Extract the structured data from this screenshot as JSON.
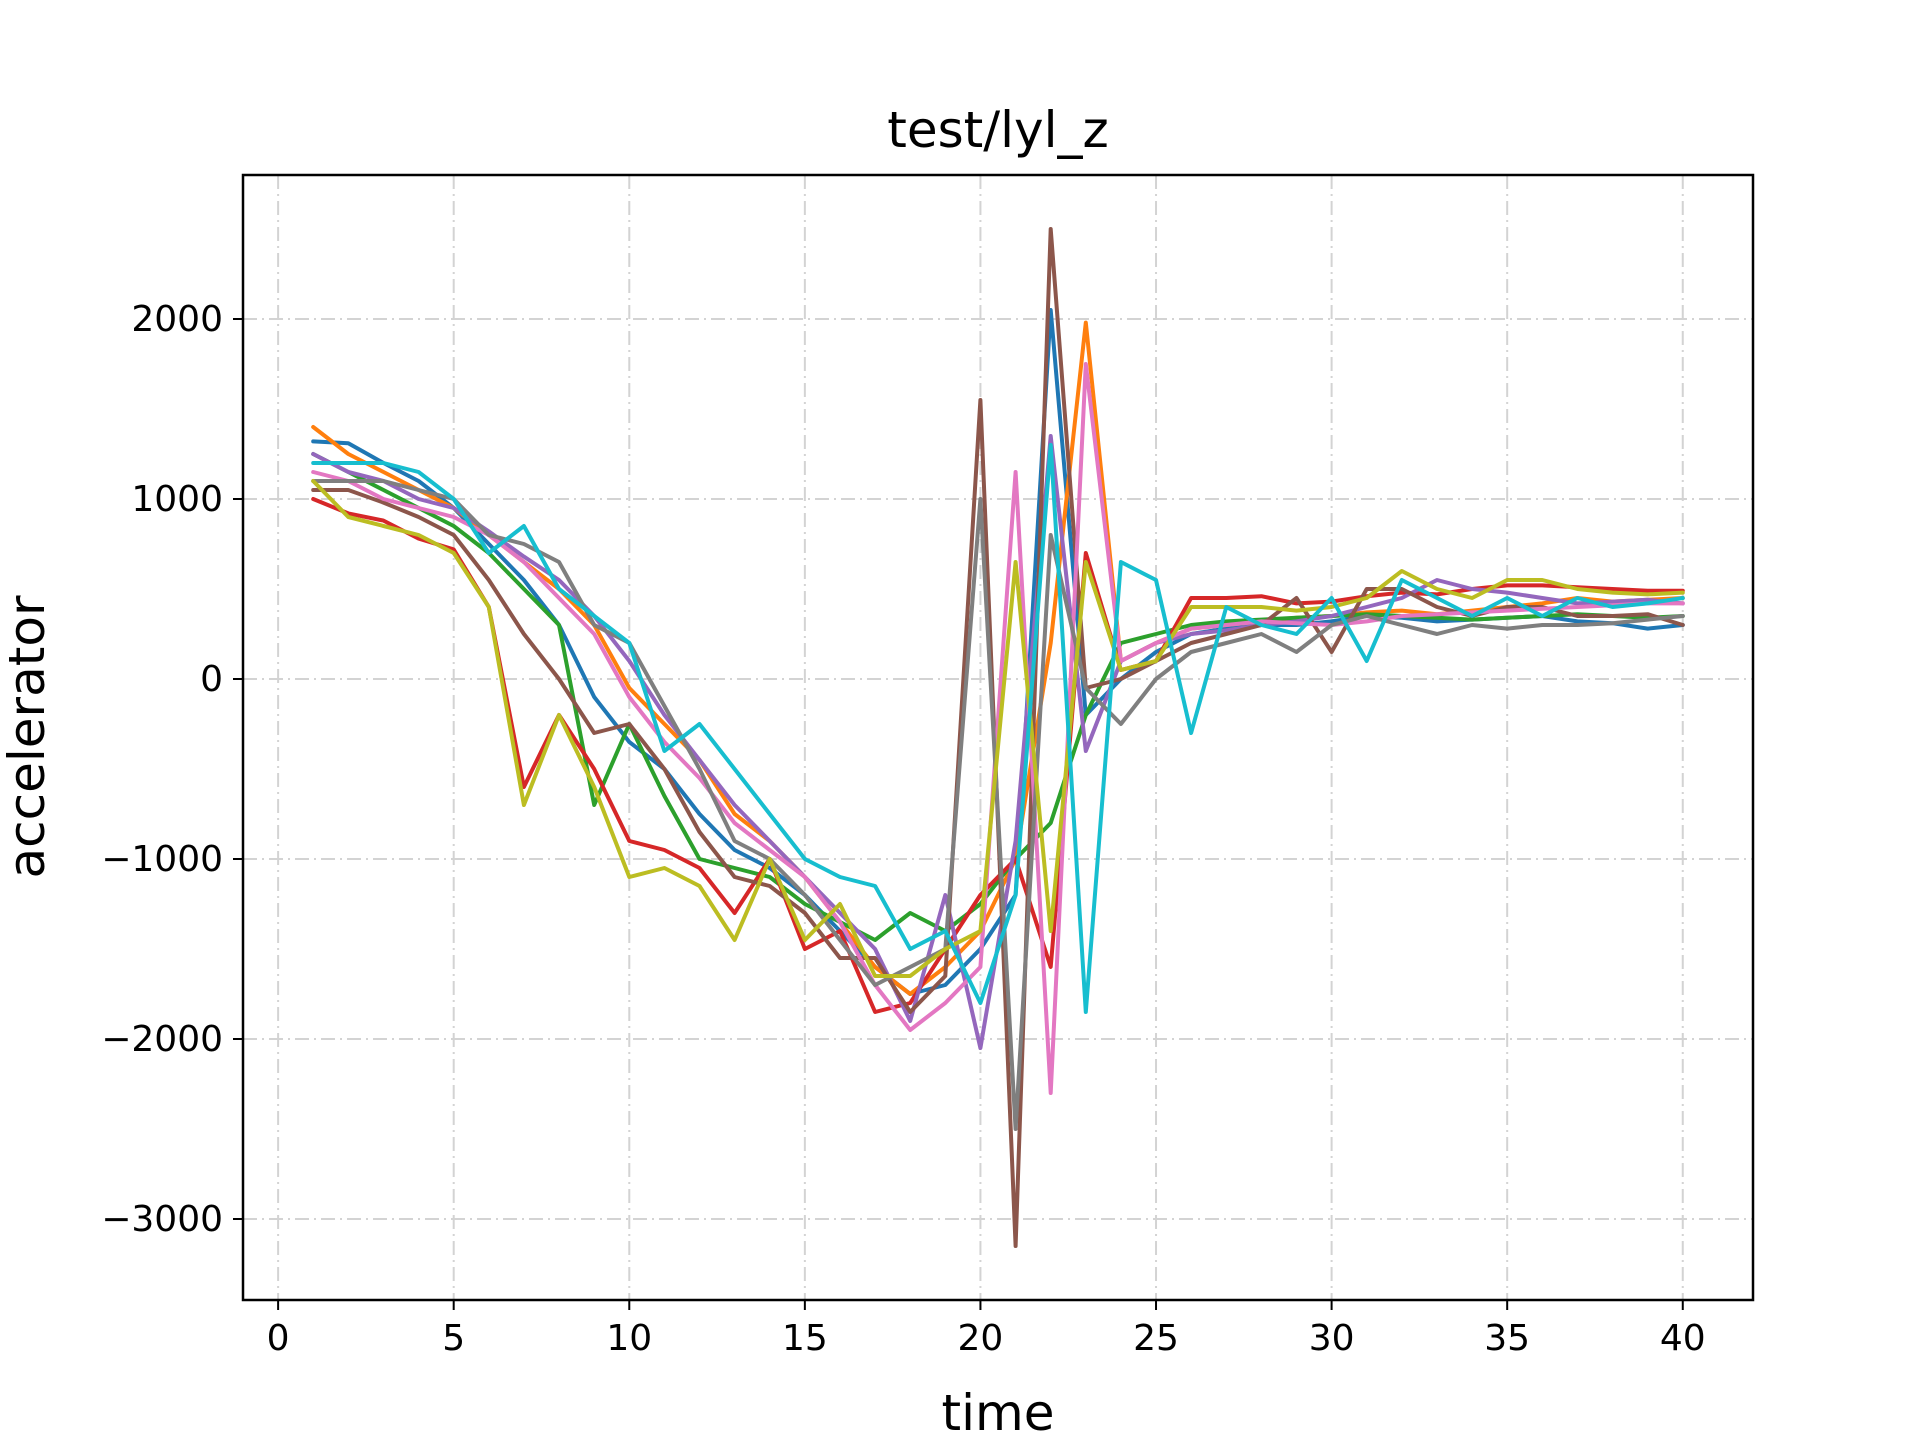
{
  "chart_data": {
    "type": "line",
    "title": "test/lyl_z",
    "xlabel": "time",
    "ylabel": "accelerator",
    "xlim": [
      -1,
      42
    ],
    "ylim": [
      -3450,
      2800
    ],
    "xticks": [
      0,
      5,
      10,
      15,
      20,
      25,
      30,
      35,
      40
    ],
    "yticks": [
      -3000,
      -2000,
      -1000,
      0,
      1000,
      2000
    ],
    "xtick_labels": [
      "0",
      "5",
      "10",
      "15",
      "20",
      "25",
      "30",
      "35",
      "40"
    ],
    "ytick_labels": [
      "−3000",
      "−2000",
      "−1000",
      "0",
      "1000",
      "2000"
    ],
    "grid": true,
    "x": [
      1,
      2,
      3,
      4,
      5,
      6,
      7,
      8,
      9,
      10,
      11,
      12,
      13,
      14,
      15,
      16,
      17,
      18,
      19,
      20,
      21,
      22,
      23,
      24,
      25,
      26,
      27,
      28,
      29,
      30,
      31,
      32,
      33,
      34,
      35,
      36,
      37,
      38,
      39,
      40
    ],
    "series": [
      {
        "color": "#1f77b4",
        "values": [
          1320,
          1310,
          1200,
          1100,
          950,
          750,
          550,
          300,
          -100,
          -350,
          -500,
          -750,
          -950,
          -1050,
          -1200,
          -1400,
          -1600,
          -1750,
          -1700,
          -1500,
          -1200,
          2050,
          -200,
          0,
          150,
          250,
          280,
          300,
          300,
          320,
          350,
          340,
          320,
          330,
          340,
          350,
          320,
          310,
          280,
          300
        ]
      },
      {
        "color": "#ff7f0e",
        "values": [
          1400,
          1250,
          1150,
          1050,
          950,
          800,
          650,
          500,
          300,
          -50,
          -250,
          -450,
          -750,
          -900,
          -1100,
          -1350,
          -1600,
          -1750,
          -1600,
          -1400,
          -1000,
          200,
          1980,
          100,
          200,
          280,
          300,
          320,
          340,
          350,
          370,
          380,
          360,
          380,
          400,
          420,
          450,
          430,
          440,
          450
        ]
      },
      {
        "color": "#2ca02c",
        "values": [
          1250,
          1150,
          1050,
          950,
          850,
          700,
          500,
          300,
          -700,
          -250,
          -650,
          -1000,
          -1050,
          -1100,
          -1250,
          -1350,
          -1450,
          -1300,
          -1400,
          -1250,
          -1000,
          -800,
          -200,
          200,
          250,
          300,
          320,
          330,
          340,
          350,
          360,
          350,
          340,
          330,
          340,
          350,
          360,
          350,
          340,
          350
        ]
      },
      {
        "color": "#d62728",
        "values": [
          1000,
          920,
          880,
          780,
          720,
          400,
          -600,
          -200,
          -500,
          -900,
          -950,
          -1050,
          -1300,
          -1000,
          -1500,
          -1400,
          -1850,
          -1800,
          -1500,
          -1200,
          -1000,
          -1600,
          700,
          50,
          100,
          450,
          450,
          460,
          420,
          430,
          460,
          480,
          470,
          500,
          520,
          520,
          510,
          500,
          490,
          490
        ]
      },
      {
        "color": "#9467bd",
        "values": [
          1250,
          1150,
          1100,
          1000,
          950,
          820,
          680,
          550,
          350,
          100,
          -200,
          -450,
          -700,
          -900,
          -1100,
          -1300,
          -1500,
          -1900,
          -1200,
          -2050,
          -900,
          1350,
          -400,
          100,
          200,
          250,
          270,
          300,
          320,
          350,
          400,
          450,
          550,
          500,
          480,
          450,
          420,
          430,
          440,
          420
        ]
      },
      {
        "color": "#8c564b",
        "values": [
          1050,
          1050,
          980,
          900,
          800,
          550,
          250,
          0,
          -300,
          -250,
          -500,
          -850,
          -1100,
          -1150,
          -1300,
          -1550,
          -1550,
          -1850,
          -1650,
          1550,
          -3150,
          2500,
          -50,
          0,
          100,
          200,
          250,
          300,
          450,
          150,
          500,
          500,
          400,
          350,
          400,
          400,
          350,
          350,
          360,
          300
        ]
      },
      {
        "color": "#e377c2",
        "values": [
          1150,
          1100,
          1000,
          950,
          900,
          800,
          650,
          450,
          250,
          -100,
          -350,
          -550,
          -800,
          -950,
          -1100,
          -1350,
          -1700,
          -1950,
          -1800,
          -1600,
          1150,
          -2300,
          1750,
          100,
          200,
          280,
          300,
          320,
          310,
          300,
          320,
          350,
          360,
          370,
          380,
          390,
          400,
          410,
          420,
          420
        ]
      },
      {
        "color": "#7f7f7f",
        "values": [
          1100,
          1100,
          1100,
          1050,
          1000,
          800,
          750,
          650,
          300,
          200,
          -150,
          -500,
          -900,
          -1000,
          -1200,
          -1450,
          -1700,
          -1600,
          -1500,
          1000,
          -2500,
          800,
          -50,
          -250,
          0,
          150,
          200,
          250,
          150,
          300,
          350,
          300,
          250,
          300,
          280,
          300,
          300,
          310,
          330,
          350
        ]
      },
      {
        "color": "#bcbd22",
        "values": [
          1100,
          900,
          850,
          800,
          700,
          400,
          -700,
          -200,
          -600,
          -1100,
          -1050,
          -1150,
          -1450,
          -1000,
          -1450,
          -1250,
          -1650,
          -1650,
          -1500,
          -1400,
          650,
          -1400,
          650,
          50,
          100,
          400,
          400,
          400,
          380,
          400,
          450,
          600,
          500,
          450,
          550,
          550,
          500,
          480,
          470,
          480
        ]
      },
      {
        "color": "#17becf",
        "values": [
          1200,
          1200,
          1200,
          1150,
          1000,
          700,
          850,
          500,
          350,
          200,
          -400,
          -250,
          -500,
          -750,
          -1000,
          -1100,
          -1150,
          -1500,
          -1400,
          -1800,
          -1200,
          1300,
          -1850,
          650,
          550,
          -300,
          400,
          300,
          250,
          450,
          100,
          550,
          450,
          350,
          450,
          350,
          450,
          400,
          420,
          450
        ]
      }
    ]
  }
}
